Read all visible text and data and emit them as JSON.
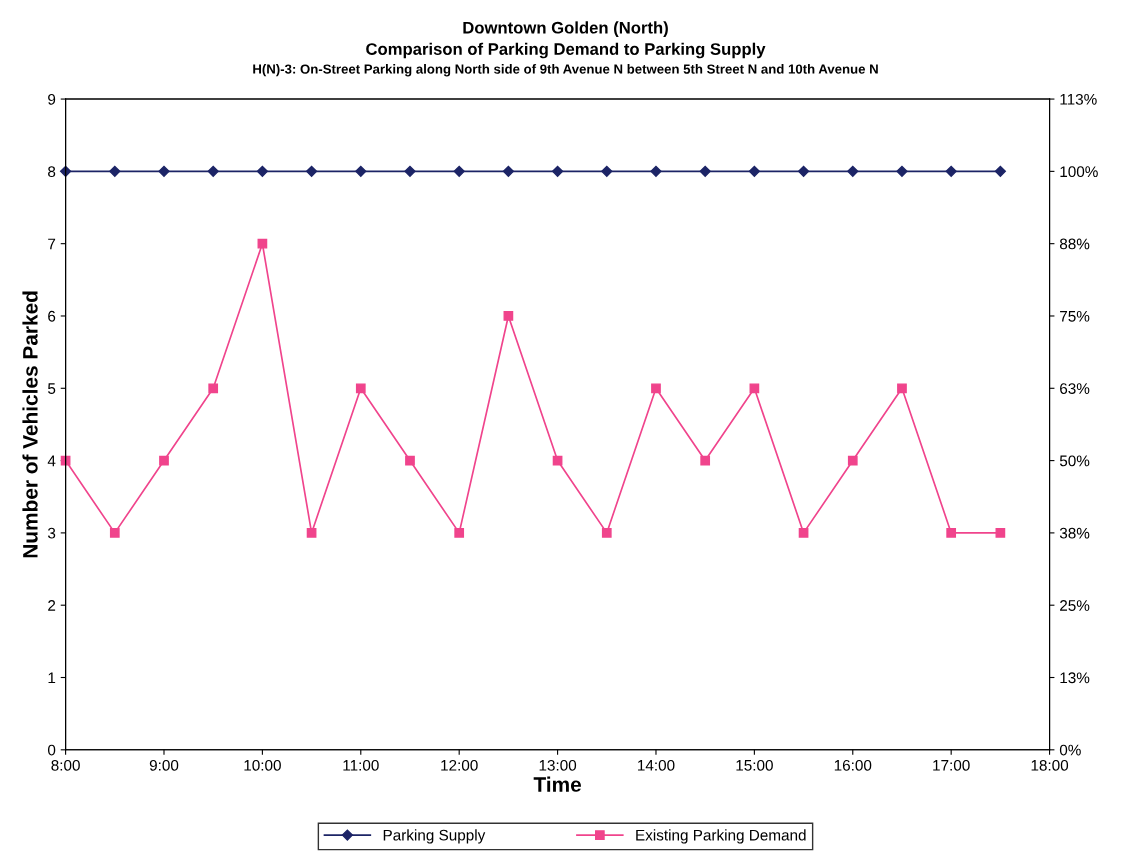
{
  "chart_data": {
    "type": "line",
    "title": "Downtown Golden (North)",
    "subtitle": "Comparison of Parking Demand to Parking Supply\nH(N)-3: On-Street Parking along North side of 9th Avenue N between 5th Street N and 10th Avenue N",
    "xlabel": "Time",
    "ylabel": "Number of Vehicles Parked",
    "x": [
      8,
      8.5,
      9,
      9.5,
      10,
      10.5,
      11,
      11.5,
      12,
      12.5,
      13,
      13.5,
      14,
      14.5,
      15,
      15.5,
      16,
      16.5,
      17,
      17.5
    ],
    "series": [
      {
        "name": "Parking Supply",
        "color": "#1c2466",
        "marker": "diamond",
        "values": [
          8,
          8,
          8,
          8,
          8,
          8,
          8,
          8,
          8,
          8,
          8,
          8,
          8,
          8,
          8,
          8,
          8,
          8,
          8,
          8
        ]
      },
      {
        "name": "Existing Parking Demand",
        "color": "#f0448c",
        "marker": "square",
        "values": [
          4,
          3,
          4,
          5,
          7,
          3,
          5,
          4,
          3,
          6,
          4,
          3,
          5,
          4,
          5,
          3,
          4,
          5,
          3,
          3
        ]
      }
    ],
    "xlim": [
      8,
      18
    ],
    "xticks": [
      {
        "value": 8,
        "label": "8:00"
      },
      {
        "value": 9,
        "label": "9:00"
      },
      {
        "value": 10,
        "label": "10:00"
      },
      {
        "value": 11,
        "label": "11:00"
      },
      {
        "value": 12,
        "label": "12:00"
      },
      {
        "value": 13,
        "label": "13:00"
      },
      {
        "value": 14,
        "label": "14:00"
      },
      {
        "value": 15,
        "label": "15:00"
      },
      {
        "value": 16,
        "label": "16:00"
      },
      {
        "value": 17,
        "label": "17:00"
      },
      {
        "value": 18,
        "label": "18:00"
      }
    ],
    "ylim": [
      0,
      9
    ],
    "yticks": [
      0,
      1,
      2,
      3,
      4,
      5,
      6,
      7,
      8,
      9
    ],
    "y2lim": [
      0,
      112.5
    ],
    "y2ticks": [
      {
        "value": 0,
        "label": "0%"
      },
      {
        "value": 12.5,
        "label": "13%"
      },
      {
        "value": 25,
        "label": "25%"
      },
      {
        "value": 37.5,
        "label": "38%"
      },
      {
        "value": 50,
        "label": "50%"
      },
      {
        "value": 62.5,
        "label": "63%"
      },
      {
        "value": 75,
        "label": "75%"
      },
      {
        "value": 87.5,
        "label": "88%"
      },
      {
        "value": 100,
        "label": "100%"
      },
      {
        "value": 112.5,
        "label": "113%"
      }
    ],
    "legend": "bottom",
    "line_style": "solid"
  }
}
